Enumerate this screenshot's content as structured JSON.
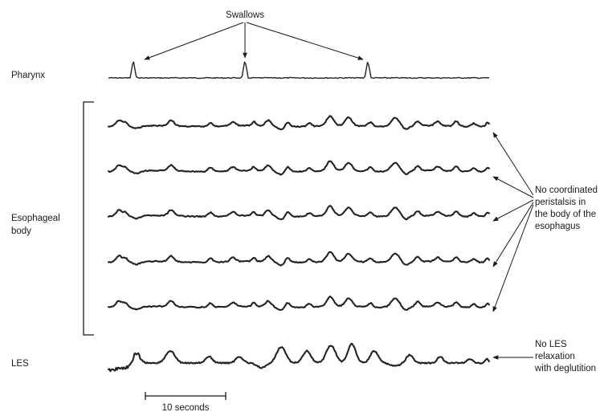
{
  "labels": {
    "swallows": "Swallows",
    "pharynx": "Pharynx",
    "esophageal_body_line1": "Esophageal",
    "esophageal_body_line2": "body",
    "les": "LES",
    "scale_bar": "10 seconds",
    "no_peristalsis": [
      "No coordinated",
      "peristalsis in",
      "the body of the",
      "esophagus"
    ],
    "no_les_relaxation": [
      "No LES",
      "relaxation",
      "with deglutition"
    ]
  },
  "traces": {
    "pharynx": "pharynx-pressure-trace",
    "esophageal_body_count": 5,
    "les": "les-pressure-trace"
  },
  "colors": {
    "ink": "#222222",
    "background": "#ffffff"
  }
}
